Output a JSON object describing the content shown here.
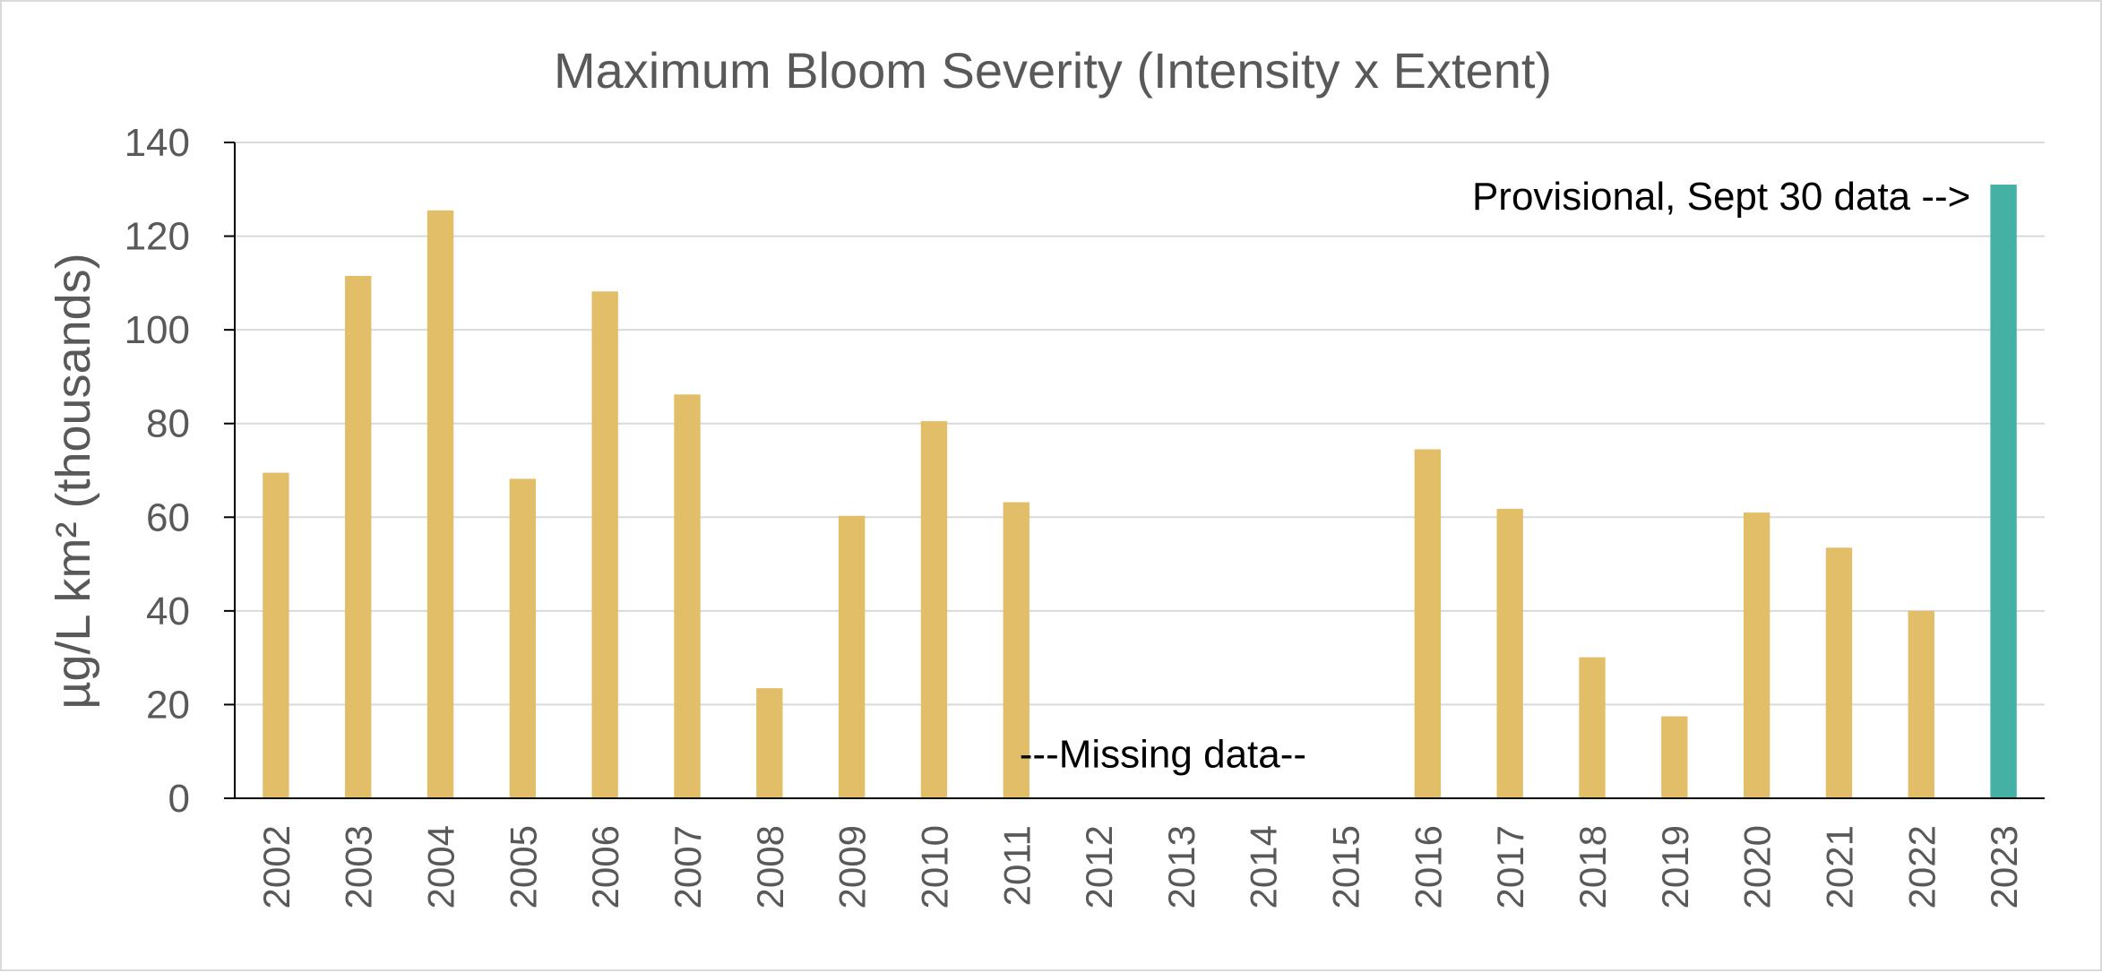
{
  "chart_data": {
    "type": "bar",
    "title": "Maximum Bloom Severity (Intensity x Extent)",
    "xlabel": "",
    "ylabel": "µg/L km² (thousands)",
    "ylim": [
      0,
      140
    ],
    "yticks": [
      0,
      20,
      40,
      60,
      80,
      100,
      120,
      140
    ],
    "grid": true,
    "legend": "none",
    "categories": [
      "2002",
      "2003",
      "2004",
      "2005",
      "2006",
      "2007",
      "2008",
      "2009",
      "2010",
      "2011",
      "2012",
      "2013",
      "2014",
      "2015",
      "2016",
      "2017",
      "2018",
      "2019",
      "2020",
      "2021",
      "2022",
      "2023"
    ],
    "values": [
      69.5,
      111.5,
      125.5,
      68.2,
      108.2,
      86.2,
      23.5,
      60.3,
      80.5,
      63.2,
      null,
      null,
      null,
      null,
      74.5,
      61.8,
      30.1,
      17.5,
      61.0,
      53.5,
      40.0,
      131.0
    ],
    "bar_color": "#E2BE69",
    "highlight_color": "#45B0A4",
    "highlight_index": 21,
    "annotations": [
      {
        "text": "Provisional, Sept 30 data -->",
        "anchor_category": "2023",
        "y": 128.5
      },
      {
        "text": "---Missing data--",
        "anchor_category": "2013",
        "y": 9.5
      }
    ]
  }
}
